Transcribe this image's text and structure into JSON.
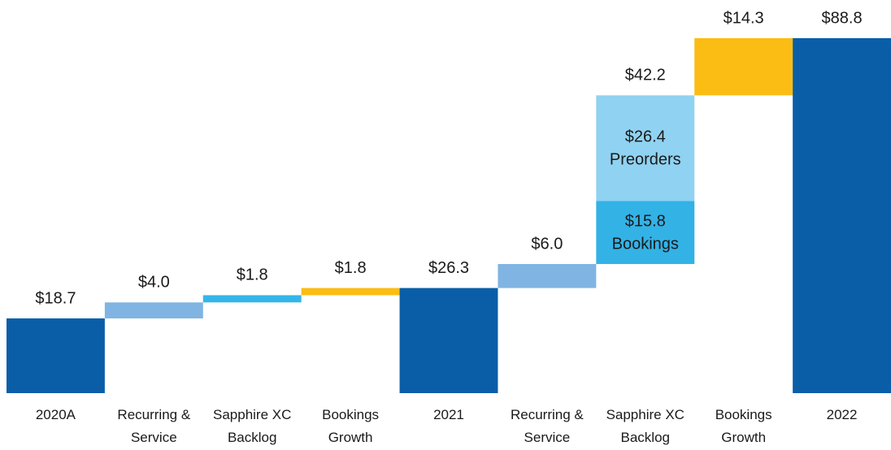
{
  "chart_data": {
    "type": "waterfall",
    "categories": [
      "2020A",
      "Recurring & Service",
      "Sapphire XC Backlog",
      "Bookings Growth",
      "2021",
      "Recurring & Service",
      "Sapphire XC Backlog",
      "Bookings Growth",
      "2022"
    ],
    "values": [
      18.7,
      4.0,
      1.8,
      1.8,
      26.3,
      6.0,
      42.2,
      14.3,
      88.8
    ],
    "value_labels": [
      "$18.7",
      "$4.0",
      "$1.8",
      "$1.8",
      "$26.3",
      "$6.0",
      "$42.2",
      "$14.3",
      "$88.8"
    ],
    "colors": [
      "#0a5ea8",
      "#80b4e2",
      "#33b6e9",
      "#fbbd14",
      "#0a5ea8",
      "#80b4e2",
      "#33b6e9",
      "#fbbd14",
      "#0a5ea8"
    ],
    "breakdown": {
      "index": 6,
      "parts": [
        {
          "name": "Bookings",
          "value": 15.8,
          "value_label": "$15.8",
          "color": "#33b2e6"
        },
        {
          "name": "Preorders",
          "value": 26.4,
          "value_label": "$26.4",
          "color": "#90d2f1"
        }
      ]
    }
  }
}
